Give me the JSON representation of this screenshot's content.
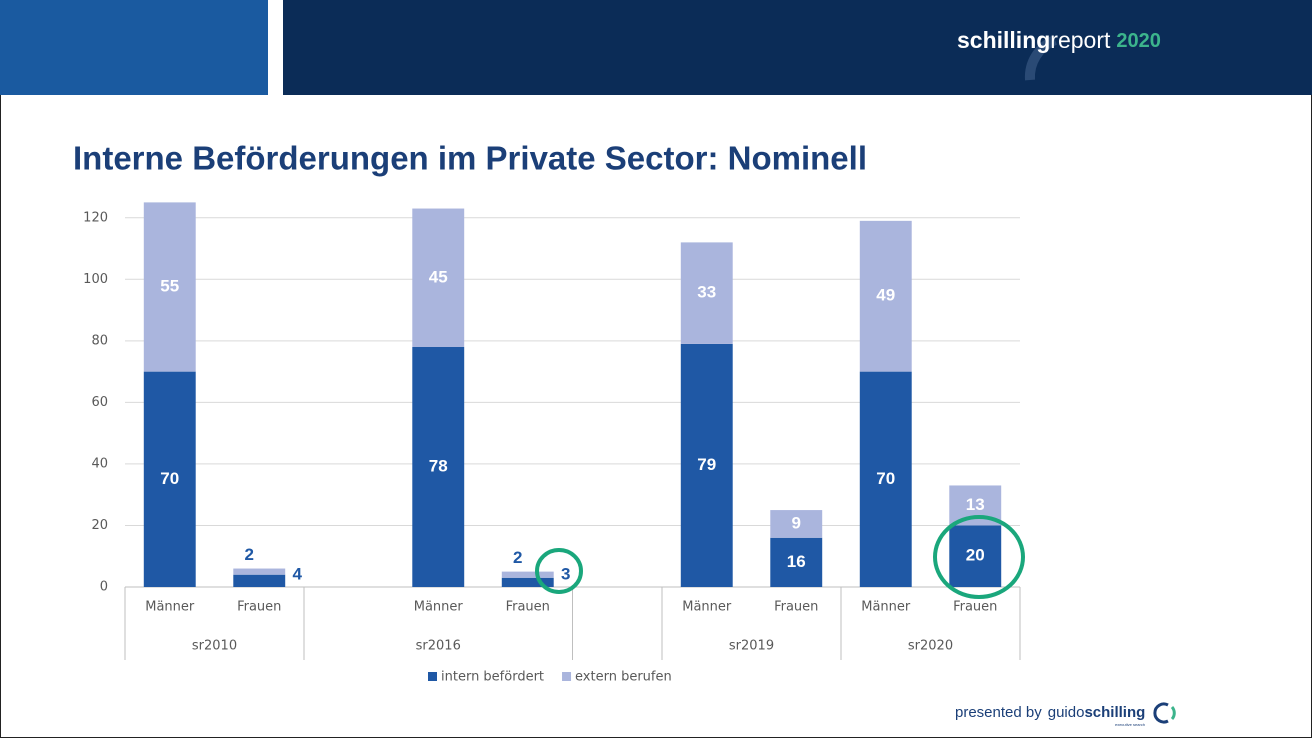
{
  "header": {
    "brand_bold": "schilling",
    "brand": "report",
    "year": "2020"
  },
  "chart_data": {
    "type": "stacked-bar",
    "title": "Interne Beförderungen im Private Sector: Nominell",
    "categories": [
      "Männer",
      "Frauen",
      null,
      "Männer",
      "Frauen",
      null,
      "Männer",
      "Frauen",
      "Männer",
      "Frauen"
    ],
    "groups": [
      {
        "label": "sr2010",
        "span": 2
      },
      {
        "label": "sr2016",
        "span": 3
      },
      {
        "label": null,
        "span": 1
      },
      {
        "label": "sr2019",
        "span": 2
      },
      {
        "label": "sr2020",
        "span": 2
      }
    ],
    "series": [
      {
        "name": "intern befördert",
        "color": "#1f58a5",
        "values": [
          70,
          4,
          null,
          78,
          3,
          null,
          79,
          16,
          70,
          20
        ]
      },
      {
        "name": "extern berufen",
        "color": "#aab5dd",
        "values": [
          55,
          2,
          null,
          45,
          2,
          null,
          33,
          9,
          49,
          13
        ]
      }
    ],
    "ylim": [
      0,
      130
    ],
    "yticks": [
      0,
      20,
      40,
      60,
      80,
      100,
      120
    ],
    "grid": true,
    "legend": "bottom"
  },
  "footer": {
    "presented": "presented by",
    "brand": "guido",
    "brand_bold": "schilling",
    "sub": "executive search"
  }
}
